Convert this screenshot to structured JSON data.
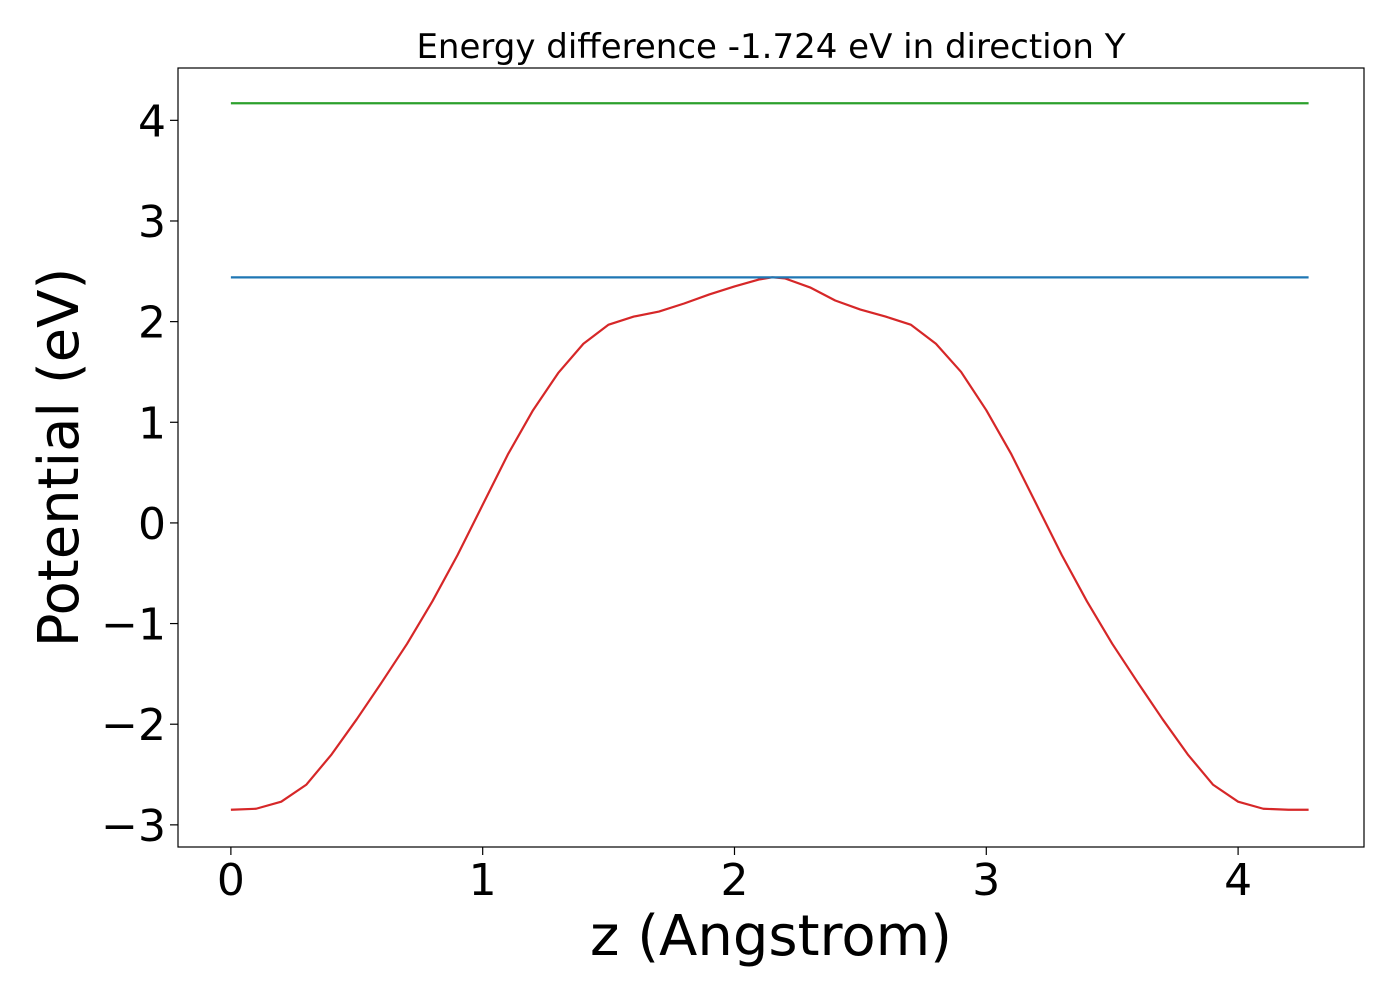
{
  "chart_data": {
    "type": "line",
    "title": "Energy difference -1.724 eV in direction Y",
    "xlabel": "z (Angstrom)",
    "ylabel": "Potential (eV)",
    "xlim": [
      -0.21,
      4.5
    ],
    "ylim": [
      -3.22,
      4.52
    ],
    "xticks": [
      0,
      1,
      2,
      3,
      4
    ],
    "xtick_labels": [
      "0",
      "1",
      "2",
      "3",
      "4"
    ],
    "yticks": [
      -3,
      -2,
      -1,
      0,
      1,
      2,
      3,
      4
    ],
    "ytick_labels": [
      "−3",
      "−2",
      "−1",
      "0",
      "1",
      "2",
      "3",
      "4"
    ],
    "grid": false,
    "series": [
      {
        "color": "#d62728",
        "x": [
          0.0,
          0.1,
          0.2,
          0.3,
          0.4,
          0.5,
          0.6,
          0.7,
          0.8,
          0.9,
          1.0,
          1.1,
          1.2,
          1.3,
          1.4,
          1.5,
          1.6,
          1.7,
          1.8,
          1.9,
          2.0,
          2.1,
          2.15,
          2.2,
          2.3,
          2.4,
          2.5,
          2.6,
          2.7,
          2.8,
          2.9,
          3.0,
          3.1,
          3.2,
          3.3,
          3.4,
          3.5,
          3.6,
          3.7,
          3.8,
          3.9,
          4.0,
          4.1,
          4.2,
          4.28
        ],
        "y": [
          -2.85,
          -2.84,
          -2.77,
          -2.6,
          -2.3,
          -1.95,
          -1.58,
          -1.2,
          -0.78,
          -0.32,
          0.18,
          0.68,
          1.12,
          1.49,
          1.78,
          1.97,
          2.05,
          2.1,
          2.18,
          2.27,
          2.35,
          2.42,
          2.44,
          2.43,
          2.34,
          2.21,
          2.12,
          2.05,
          1.97,
          1.78,
          1.5,
          1.12,
          0.68,
          0.18,
          -0.32,
          -0.78,
          -1.2,
          -1.58,
          -1.95,
          -2.3,
          -2.6,
          -2.77,
          -2.84,
          -2.85,
          -2.85
        ]
      },
      {
        "color": "#1f77b4",
        "x": [
          0.0,
          4.28
        ],
        "y": [
          2.44,
          2.44
        ]
      },
      {
        "color": "#2ca02c",
        "x": [
          0.0,
          4.28
        ],
        "y": [
          4.17,
          4.17
        ]
      }
    ]
  }
}
